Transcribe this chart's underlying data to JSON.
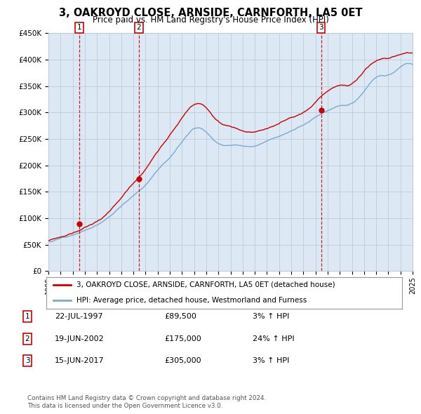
{
  "title": "3, OAKROYD CLOSE, ARNSIDE, CARNFORTH, LA5 0ET",
  "subtitle": "Price paid vs. HM Land Registry's House Price Index (HPI)",
  "legend_line1": "3, OAKROYD CLOSE, ARNSIDE, CARNFORTH, LA5 0ET (detached house)",
  "legend_line2": "HPI: Average price, detached house, Westmorland and Furness",
  "sale_color": "#cc0000",
  "hpi_color": "#7aaad0",
  "ylim": [
    0,
    450000
  ],
  "yticks": [
    0,
    50000,
    100000,
    150000,
    200000,
    250000,
    300000,
    350000,
    400000,
    450000
  ],
  "ytick_labels": [
    "£0",
    "£50K",
    "£100K",
    "£150K",
    "£200K",
    "£250K",
    "£300K",
    "£350K",
    "£400K",
    "£450K"
  ],
  "footnote1": "Contains HM Land Registry data © Crown copyright and database right 2024.",
  "footnote2": "This data is licensed under the Open Government Licence v3.0.",
  "transactions": [
    {
      "num": 1,
      "date": "22-JUL-1997",
      "price": 89500,
      "pct": "3%",
      "dir": "↑",
      "x_year": 1997.55
    },
    {
      "num": 2,
      "date": "19-JUN-2002",
      "price": 175000,
      "pct": "24%",
      "dir": "↑",
      "x_year": 2002.46
    },
    {
      "num": 3,
      "date": "15-JUN-2017",
      "price": 305000,
      "pct": "3%",
      "dir": "↑",
      "x_year": 2017.46
    }
  ],
  "grid_color": "#bbccdd",
  "plot_bg": "#dce9f5",
  "bg_color": "#ffffff",
  "hpi_seed": 12,
  "sale_seed": 99,
  "xmin": 1995,
  "xmax": 2025
}
